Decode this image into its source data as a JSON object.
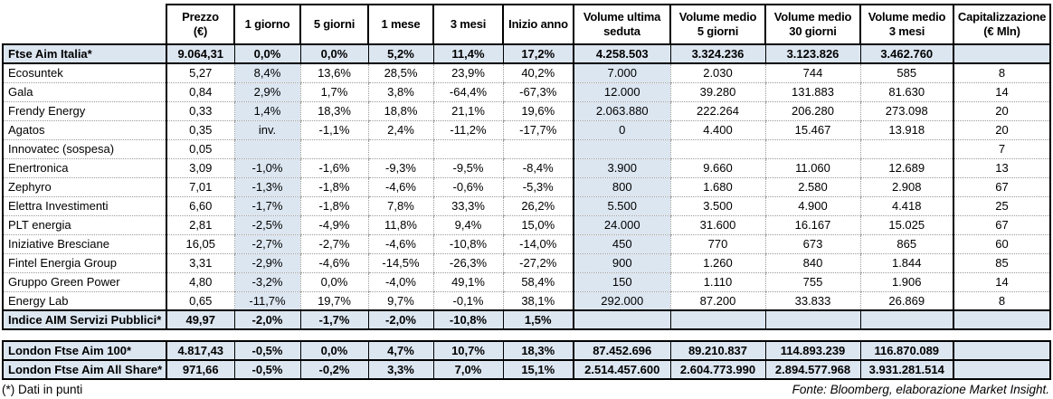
{
  "colors": {
    "shade": "#dce6f1",
    "border": "#000000",
    "dotted_grid": "#9a9a9a"
  },
  "main": {
    "columns": [
      {
        "label": "Prezzo\n(€)"
      },
      {
        "label": "1 giorno"
      },
      {
        "label": "5 giorni"
      },
      {
        "label": "1 mese"
      },
      {
        "label": "3 mesi"
      },
      {
        "label": "Inizio anno"
      },
      {
        "label": "Volume ultima\nseduta"
      },
      {
        "label": "Volume medio\n5 giorni"
      },
      {
        "label": "Volume medio\n30 giorni"
      },
      {
        "label": "Volume medio\n3 mesi"
      },
      {
        "label": "Capitalizzazione\n(€ Mln)"
      }
    ],
    "shaded_value_columns": [
      1,
      6
    ],
    "rows": [
      {
        "name": "Ftse Aim Italia*",
        "type": "index",
        "values": [
          "9.064,31",
          "0,0%",
          "0,0%",
          "5,2%",
          "11,4%",
          "17,2%",
          "4.258.503",
          "3.324.236",
          "3.123.826",
          "3.462.760",
          ""
        ]
      },
      {
        "name": "Ecosuntek",
        "type": "stock",
        "values": [
          "5,27",
          "8,4%",
          "13,6%",
          "28,5%",
          "23,9%",
          "40,2%",
          "7.000",
          "2.030",
          "744",
          "585",
          "8"
        ]
      },
      {
        "name": "Gala",
        "type": "stock",
        "values": [
          "0,84",
          "2,9%",
          "1,7%",
          "3,8%",
          "-64,4%",
          "-67,3%",
          "12.000",
          "39.280",
          "131.883",
          "81.630",
          "14"
        ]
      },
      {
        "name": "Frendy Energy",
        "type": "stock",
        "values": [
          "0,33",
          "1,4%",
          "18,3%",
          "18,8%",
          "21,1%",
          "19,6%",
          "2.063.880",
          "222.264",
          "206.280",
          "273.098",
          "20"
        ]
      },
      {
        "name": "Agatos",
        "type": "stock",
        "values": [
          "0,35",
          "inv.",
          "-1,1%",
          "2,4%",
          "-11,2%",
          "-17,7%",
          "0",
          "4.400",
          "15.467",
          "13.918",
          "20"
        ]
      },
      {
        "name": "Innovatec (sospesa)",
        "type": "stock",
        "values": [
          "0,05",
          "",
          "",
          "",
          "",
          "",
          "",
          "",
          "",
          "",
          "7"
        ]
      },
      {
        "name": "Enertronica",
        "type": "stock",
        "values": [
          "3,09",
          "-1,0%",
          "-1,6%",
          "-9,3%",
          "-9,5%",
          "-8,4%",
          "3.900",
          "9.660",
          "11.060",
          "12.689",
          "13"
        ]
      },
      {
        "name": "Zephyro",
        "type": "stock",
        "values": [
          "7,01",
          "-1,3%",
          "-1,8%",
          "-4,6%",
          "-0,6%",
          "-5,3%",
          "800",
          "1.680",
          "2.580",
          "2.908",
          "67"
        ]
      },
      {
        "name": "Elettra Investimenti",
        "type": "stock",
        "values": [
          "6,60",
          "-1,7%",
          "-1,8%",
          "7,8%",
          "33,3%",
          "26,2%",
          "5.500",
          "3.500",
          "4.900",
          "4.418",
          "25"
        ]
      },
      {
        "name": "PLT energia",
        "type": "stock",
        "values": [
          "2,81",
          "-2,5%",
          "-4,9%",
          "11,8%",
          "9,4%",
          "15,0%",
          "24.000",
          "31.600",
          "16.167",
          "15.025",
          "67"
        ]
      },
      {
        "name": "Iniziative Bresciane",
        "type": "stock",
        "values": [
          "16,05",
          "-2,7%",
          "-2,7%",
          "-4,6%",
          "-10,8%",
          "-14,0%",
          "450",
          "770",
          "673",
          "865",
          "60"
        ]
      },
      {
        "name": "Fintel Energia Group",
        "type": "stock",
        "values": [
          "3,31",
          "-2,9%",
          "-4,6%",
          "-14,5%",
          "-26,3%",
          "-27,2%",
          "900",
          "1.260",
          "840",
          "1.844",
          "85"
        ]
      },
      {
        "name": "Gruppo Green Power",
        "type": "stock",
        "values": [
          "4,80",
          "-3,2%",
          "0,0%",
          "-4,0%",
          "49,1%",
          "58,4%",
          "150",
          "1.110",
          "755",
          "1.906",
          "14"
        ]
      },
      {
        "name": "Energy Lab",
        "type": "stock",
        "values": [
          "0,65",
          "-11,7%",
          "19,7%",
          "9,7%",
          "-0,1%",
          "38,1%",
          "292.000",
          "87.200",
          "33.833",
          "26.869",
          "8"
        ]
      },
      {
        "name": "Indice AIM Servizi Pubblici*",
        "type": "index",
        "values": [
          "49,97",
          "-2,0%",
          "-1,7%",
          "-2,0%",
          "-10,8%",
          "1,5%",
          "",
          "",
          "",
          "",
          ""
        ]
      }
    ]
  },
  "london": {
    "rows": [
      {
        "name": "London Ftse Aim 100*",
        "type": "index",
        "values": [
          "4.817,43",
          "-0,5%",
          "0,0%",
          "4,7%",
          "10,7%",
          "18,3%",
          "87.452.696",
          "89.210.837",
          "114.893.239",
          "116.870.089",
          ""
        ]
      },
      {
        "name": "London Ftse Aim All Share*",
        "type": "index",
        "values": [
          "971,66",
          "-0,5%",
          "-0,2%",
          "3,3%",
          "7,0%",
          "15,1%",
          "2.514.457.600",
          "2.604.773.990",
          "2.894.577.968",
          "3.931.281.514",
          ""
        ]
      }
    ]
  },
  "footer": {
    "note": "(*) Dati in punti",
    "source": "Fonte: Bloomberg, elaborazione Market Insight."
  }
}
